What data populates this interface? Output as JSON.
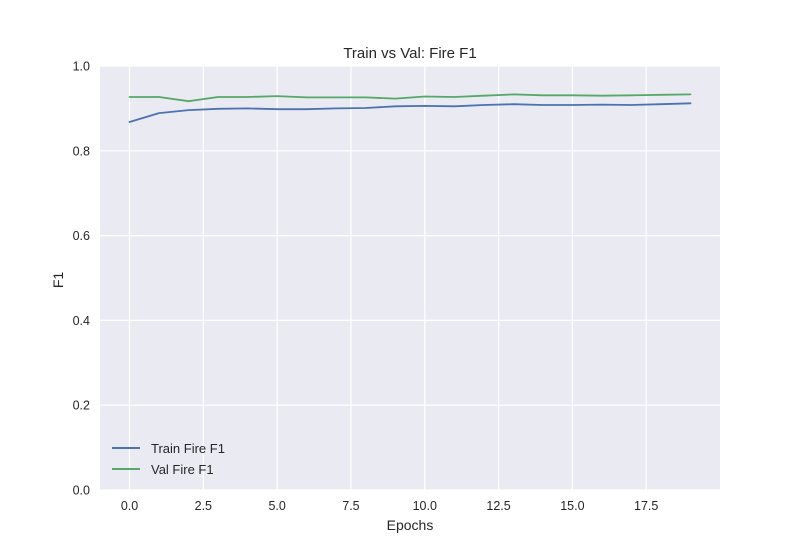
{
  "chart_data": {
    "type": "line",
    "title": "Train vs Val: Fire F1",
    "xlabel": "Epochs",
    "ylabel": "F1",
    "xlim": [
      -1,
      20
    ],
    "ylim": [
      0,
      1
    ],
    "x_ticks": [
      0,
      2.5,
      5,
      7.5,
      10,
      12.5,
      15,
      17.5
    ],
    "x_tick_labels": [
      "0.0",
      "2.5",
      "5.0",
      "7.5",
      "10.0",
      "12.5",
      "15.0",
      "17.5"
    ],
    "y_ticks": [
      0,
      0.2,
      0.4,
      0.6,
      0.8,
      1.0
    ],
    "y_tick_labels": [
      "0.0",
      "0.2",
      "0.4",
      "0.6",
      "0.8",
      "1.0"
    ],
    "grid": true,
    "legend_position": "lower-left",
    "x": [
      0,
      1,
      2,
      3,
      4,
      5,
      6,
      7,
      8,
      9,
      10,
      11,
      12,
      13,
      14,
      15,
      16,
      17,
      18,
      19
    ],
    "series": [
      {
        "name": "Train Fire F1",
        "color": "#4c72b0",
        "values": [
          0.868,
          0.889,
          0.896,
          0.899,
          0.9,
          0.898,
          0.898,
          0.9,
          0.901,
          0.905,
          0.906,
          0.905,
          0.908,
          0.91,
          0.908,
          0.908,
          0.909,
          0.908,
          0.91,
          0.912
        ]
      },
      {
        "name": "Val Fire F1",
        "color": "#55a868",
        "values": [
          0.927,
          0.927,
          0.917,
          0.927,
          0.927,
          0.929,
          0.926,
          0.926,
          0.926,
          0.923,
          0.928,
          0.927,
          0.93,
          0.933,
          0.931,
          0.931,
          0.93,
          0.931,
          0.932,
          0.933
        ]
      }
    ]
  }
}
